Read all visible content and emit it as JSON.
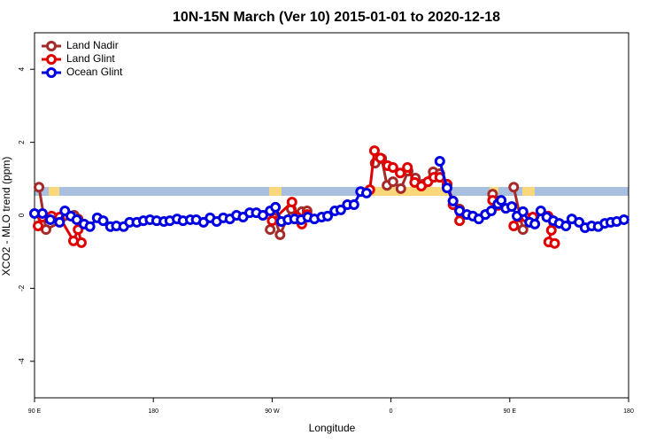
{
  "chart_data": {
    "type": "line",
    "title": "10N-15N March (Ver 10)   2015-01-01 to 2020-12-18",
    "x_label": "Longitude",
    "y_label": "XCO2 - MLO trend (ppm)",
    "xlim": [
      90,
      540
    ],
    "ylim": [
      -5,
      5
    ],
    "xticks": [
      {
        "value": 90,
        "label": "90 E"
      },
      180,
      {
        "value": 270,
        "label": "90 W"
      },
      {
        "value": 360,
        "label": "0"
      },
      {
        "value": 450,
        "label": "90 E"
      },
      {
        "value": 540,
        "label": "180"
      }
    ],
    "yticks": [
      4,
      2,
      0,
      -2,
      -4
    ],
    "legend": "top-left",
    "series": [
      {
        "name": "Land Nadir",
        "color": "#a52a2a",
        "x": [
          93.4,
          98.7,
          120,
          123,
          200,
          268.5,
          272,
          276,
          284.5,
          289,
          292.5,
          296.5,
          320,
          348,
          353,
          357,
          361.5,
          367.5,
          373,
          378.5,
          384,
          392,
          397,
          402.5,
          407,
          412,
          425,
          437,
          441.5,
          447,
          453,
          460
        ],
        "values": [
          0.77,
          -0.39,
          0,
          -0.1,
          null,
          -0.39,
          -0.07,
          -0.53,
          0.17,
          0,
          0.1,
          0.12,
          null,
          1.43,
          1.55,
          0.82,
          0.92,
          0.73,
          1.21,
          1.02,
          0.85,
          1.19,
          1.14,
          0.85,
          0.39,
          0.17,
          null,
          0.58,
          0.39,
          null,
          0.77,
          -0.39
        ]
      },
      {
        "name": "Land Glint",
        "color": "#e00000",
        "x": [
          92.7,
          96,
          103,
          109,
          119.5,
          123,
          125.5,
          200,
          270,
          285,
          289,
          292.5,
          296.5,
          320,
          344,
          347.5,
          352,
          357.5,
          361.5,
          367,
          372.5,
          378,
          383,
          388,
          392.5,
          397,
          402.5,
          407,
          412,
          425,
          437,
          441,
          447,
          453,
          457,
          462,
          467.5,
          472,
          479,
          481.5,
          479.5,
          484
        ],
        "values": [
          -0.29,
          -0.05,
          -0.02,
          -0.05,
          -0.7,
          -0.39,
          -0.75,
          null,
          -0.15,
          0.36,
          -0.05,
          -0.24,
          0.02,
          null,
          0.7,
          1.77,
          1.57,
          1.36,
          1.31,
          1.16,
          1.31,
          0.9,
          0.8,
          0.92,
          1.04,
          1.04,
          0.85,
          0.29,
          -0.15,
          null,
          0.41,
          0.27,
          null,
          -0.29,
          -0.05,
          -0.05,
          -0.05,
          null,
          -0.02,
          -0.41,
          -0.73,
          -0.77
        ]
      },
      {
        "name": "Ocean Glint",
        "color": "#0000e0",
        "x": [
          90,
          96,
          102,
          109,
          113,
          117.5,
          122,
          127.5,
          132,
          137.5,
          142,
          147.5,
          152,
          157.5,
          162,
          167.5,
          172.5,
          177.5,
          182.5,
          188,
          192.5,
          198,
          202.5,
          208,
          212.5,
          218,
          223,
          228,
          233,
          238,
          243,
          248,
          253,
          258,
          263,
          268.5,
          272.5,
          277,
          282,
          287,
          292,
          297,
          302,
          307.5,
          312,
          317.5,
          322,
          327,
          332,
          337,
          341.5,
          370,
          397,
          402.5,
          407,
          412,
          417.5,
          422,
          426.5,
          431.5,
          436,
          441,
          443.5,
          447,
          451.5,
          455.5,
          460,
          465,
          469,
          473.5,
          478,
          483,
          487.5,
          492.5,
          497,
          502.5,
          507,
          512,
          517,
          522,
          526.5,
          531,
          536.5
        ],
        "values": [
          0.05,
          0.05,
          -0.12,
          -0.19,
          0.12,
          -0.02,
          -0.12,
          -0.24,
          -0.31,
          -0.07,
          -0.15,
          -0.31,
          -0.29,
          -0.31,
          -0.19,
          -0.19,
          -0.15,
          -0.12,
          -0.15,
          -0.17,
          -0.15,
          -0.1,
          -0.15,
          -0.12,
          -0.12,
          -0.19,
          -0.07,
          -0.17,
          -0.07,
          -0.1,
          0,
          -0.05,
          0.07,
          0.07,
          0,
          0.12,
          0.22,
          -0.17,
          -0.12,
          -0.1,
          -0.12,
          -0.05,
          -0.1,
          -0.05,
          -0.02,
          0.12,
          0.15,
          0.29,
          0.29,
          0.65,
          0.61,
          null,
          1.48,
          0.75,
          0.39,
          0.12,
          0.02,
          -0.02,
          -0.1,
          0.02,
          0.12,
          0.31,
          0.41,
          0.19,
          0.24,
          -0.02,
          0.1,
          -0.19,
          -0.24,
          0.12,
          -0.05,
          -0.15,
          -0.22,
          -0.29,
          -0.1,
          -0.19,
          -0.34,
          -0.29,
          -0.31,
          -0.22,
          -0.19,
          -0.17,
          -0.12
        ]
      }
    ]
  }
}
